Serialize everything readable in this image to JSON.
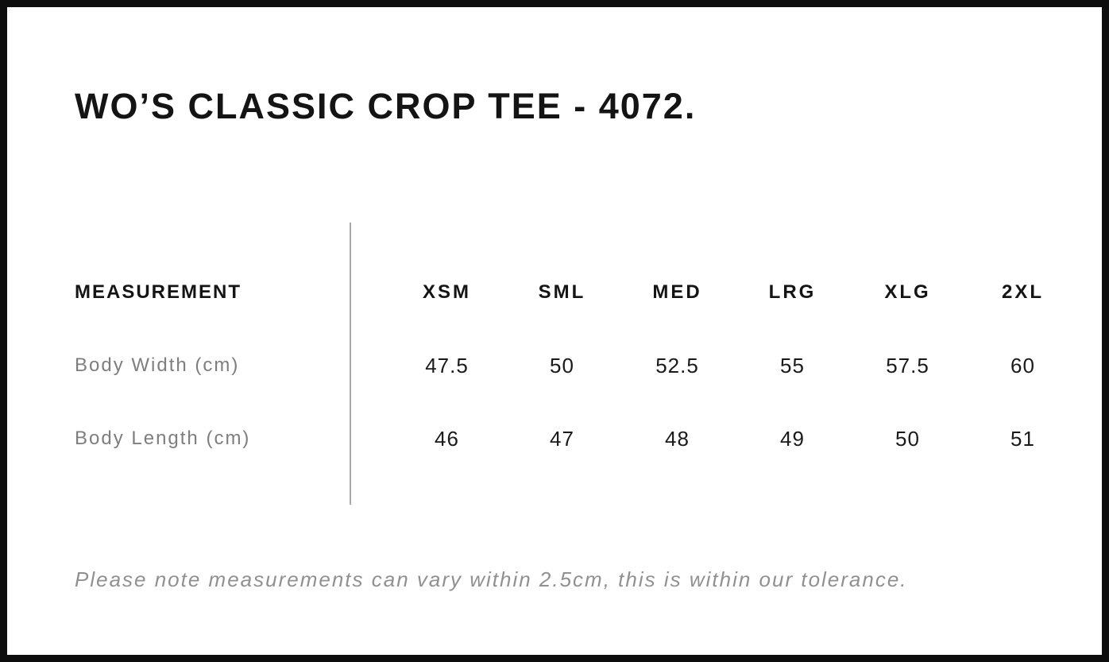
{
  "title": "WO’S CLASSIC CROP TEE - 4072.",
  "table": {
    "measurement_header": "MEASUREMENT",
    "size_headers": [
      "XSM",
      "SML",
      "MED",
      "LRG",
      "XLG",
      "2XL"
    ],
    "rows": [
      {
        "label": "Body Width (cm)",
        "values": [
          "47.5",
          "50",
          "52.5",
          "55",
          "57.5",
          "60"
        ]
      },
      {
        "label": "Body Length (cm)",
        "values": [
          "46",
          "47",
          "48",
          "49",
          "50",
          "51"
        ]
      }
    ]
  },
  "note": "Please note measurements can vary within 2.5cm, this is within our tolerance.",
  "colors": {
    "text": "#141414",
    "muted_label": "#7e7e7e",
    "note_text": "#909090",
    "divider": "#a9a9a9",
    "border": "#0d0d0d",
    "background": "#ffffff"
  }
}
